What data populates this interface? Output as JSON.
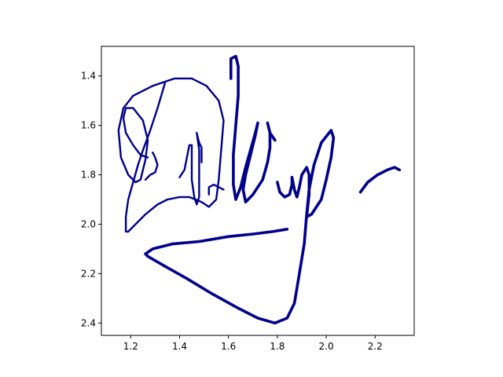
{
  "chart_data": {
    "type": "line",
    "title": "",
    "xlabel": "",
    "ylabel": "",
    "xlim": [
      1.08,
      2.36
    ],
    "ylim": [
      2.45,
      1.28
    ],
    "y_inverted": true,
    "grid": false,
    "line_color": "#00008b",
    "x_ticks": [
      {
        "value": 1.2,
        "label": "1.2"
      },
      {
        "value": 1.4,
        "label": "1.4"
      },
      {
        "value": 1.6,
        "label": "1.6"
      },
      {
        "value": 1.8,
        "label": "1.8"
      },
      {
        "value": 2.0,
        "label": "2.0"
      },
      {
        "value": 2.2,
        "label": "2.2"
      }
    ],
    "y_ticks": [
      {
        "value": 1.4,
        "label": "1.4"
      },
      {
        "value": 1.6,
        "label": "1.6"
      },
      {
        "value": 1.8,
        "label": "1.8"
      },
      {
        "value": 2.0,
        "label": "2.0"
      },
      {
        "value": 2.2,
        "label": "2.2"
      },
      {
        "value": 2.4,
        "label": "2.4"
      }
    ],
    "series": [
      {
        "width": 2,
        "points": [
          [
            1.34,
            1.43
          ],
          [
            1.31,
            1.53
          ],
          [
            1.28,
            1.62
          ],
          [
            1.25,
            1.7
          ],
          [
            1.23,
            1.76
          ],
          [
            1.21,
            1.83
          ],
          [
            1.19,
            1.9
          ],
          [
            1.18,
            1.97
          ],
          [
            1.18,
            2.03
          ],
          [
            1.19,
            2.03
          ],
          [
            1.22,
            2.0
          ],
          [
            1.26,
            1.96
          ],
          [
            1.31,
            1.92
          ],
          [
            1.35,
            1.9
          ],
          [
            1.4,
            1.89
          ],
          [
            1.44,
            1.89
          ],
          [
            1.49,
            1.91
          ],
          [
            1.52,
            1.93
          ],
          [
            1.55,
            1.9
          ],
          [
            1.56,
            1.82
          ],
          [
            1.57,
            1.7
          ],
          [
            1.58,
            1.58
          ],
          [
            1.56,
            1.5
          ],
          [
            1.51,
            1.44
          ],
          [
            1.45,
            1.41
          ],
          [
            1.38,
            1.41
          ],
          [
            1.29,
            1.44
          ],
          [
            1.21,
            1.48
          ],
          [
            1.17,
            1.53
          ],
          [
            1.15,
            1.62
          ],
          [
            1.16,
            1.73
          ],
          [
            1.19,
            1.8
          ],
          [
            1.22,
            1.83
          ],
          [
            1.24,
            1.82
          ],
          [
            1.26,
            1.74
          ],
          [
            1.27,
            1.66
          ],
          [
            1.25,
            1.58
          ],
          [
            1.21,
            1.53
          ],
          [
            1.18,
            1.53
          ],
          [
            1.17,
            1.57
          ],
          [
            1.18,
            1.63
          ],
          [
            1.21,
            1.68
          ],
          [
            1.24,
            1.72
          ],
          [
            1.27,
            1.73
          ]
        ]
      },
      {
        "width": 2,
        "points": [
          [
            1.26,
            1.82
          ],
          [
            1.28,
            1.8
          ],
          [
            1.3,
            1.79
          ],
          [
            1.31,
            1.76
          ],
          [
            1.3,
            1.73
          ],
          [
            1.29,
            1.71
          ]
        ]
      },
      {
        "width": 2,
        "points": [
          [
            1.4,
            1.81
          ],
          [
            1.42,
            1.78
          ],
          [
            1.43,
            1.73
          ],
          [
            1.44,
            1.68
          ],
          [
            1.45,
            1.68
          ],
          [
            1.45,
            1.75
          ],
          [
            1.45,
            1.82
          ],
          [
            1.46,
            1.89
          ],
          [
            1.47,
            1.92
          ],
          [
            1.48,
            1.89
          ],
          [
            1.48,
            1.8
          ],
          [
            1.48,
            1.7
          ],
          [
            1.47,
            1.63
          ],
          [
            1.48,
            1.67
          ],
          [
            1.49,
            1.69
          ],
          [
            1.49,
            1.75
          ]
        ]
      },
      {
        "width": 2,
        "points": [
          [
            1.52,
            1.88
          ],
          [
            1.52,
            1.85
          ],
          [
            1.54,
            1.84
          ],
          [
            1.56,
            1.85
          ],
          [
            1.58,
            1.86
          ]
        ]
      },
      {
        "width": 3,
        "points": [
          [
            1.61,
            1.41
          ],
          [
            1.61,
            1.33
          ],
          [
            1.63,
            1.32
          ],
          [
            1.64,
            1.36
          ],
          [
            1.64,
            1.48
          ],
          [
            1.63,
            1.6
          ],
          [
            1.62,
            1.72
          ],
          [
            1.62,
            1.84
          ],
          [
            1.63,
            1.9
          ],
          [
            1.65,
            1.85
          ],
          [
            1.67,
            1.77
          ],
          [
            1.69,
            1.7
          ],
          [
            1.71,
            1.63
          ],
          [
            1.72,
            1.59
          ],
          [
            1.71,
            1.64
          ],
          [
            1.69,
            1.72
          ],
          [
            1.67,
            1.8
          ],
          [
            1.66,
            1.86
          ],
          [
            1.67,
            1.91
          ],
          [
            1.7,
            1.88
          ],
          [
            1.74,
            1.82
          ],
          [
            1.76,
            1.75
          ],
          [
            1.77,
            1.69
          ],
          [
            1.77,
            1.63
          ],
          [
            1.76,
            1.59
          ],
          [
            1.77,
            1.63
          ],
          [
            1.79,
            1.66
          ]
        ]
      },
      {
        "width": 3,
        "points": [
          [
            1.8,
            1.83
          ],
          [
            1.81,
            1.87
          ],
          [
            1.83,
            1.89
          ],
          [
            1.85,
            1.88
          ],
          [
            1.86,
            1.84
          ],
          [
            1.86,
            1.81
          ],
          [
            1.87,
            1.86
          ],
          [
            1.88,
            1.89
          ],
          [
            1.89,
            1.85
          ],
          [
            1.9,
            1.8
          ],
          [
            1.92,
            1.77
          ],
          [
            1.93,
            1.8
          ],
          [
            1.93,
            1.88
          ],
          [
            1.92,
            1.97
          ],
          [
            1.94,
            1.96
          ],
          [
            1.98,
            1.9
          ],
          [
            2.0,
            1.82
          ],
          [
            2.02,
            1.73
          ],
          [
            2.03,
            1.65
          ],
          [
            2.02,
            1.62
          ],
          [
            1.98,
            1.67
          ],
          [
            1.95,
            1.76
          ],
          [
            1.93,
            1.86
          ],
          [
            1.92,
            1.96
          ],
          [
            1.91,
            2.08
          ],
          [
            1.89,
            2.2
          ],
          [
            1.87,
            2.32
          ],
          [
            1.84,
            2.38
          ],
          [
            1.79,
            2.4
          ],
          [
            1.72,
            2.38
          ],
          [
            1.64,
            2.34
          ],
          [
            1.53,
            2.28
          ],
          [
            1.43,
            2.22
          ],
          [
            1.34,
            2.17
          ],
          [
            1.27,
            2.13
          ],
          [
            1.26,
            2.12
          ],
          [
            1.29,
            2.1
          ],
          [
            1.37,
            2.08
          ],
          [
            1.48,
            2.07
          ],
          [
            1.6,
            2.05
          ],
          [
            1.7,
            2.04
          ],
          [
            1.78,
            2.03
          ],
          [
            1.84,
            2.02
          ]
        ]
      },
      {
        "width": 3,
        "points": [
          [
            2.14,
            1.87
          ],
          [
            2.17,
            1.83
          ],
          [
            2.21,
            1.8
          ],
          [
            2.25,
            1.78
          ],
          [
            2.28,
            1.77
          ],
          [
            2.3,
            1.78
          ]
        ]
      }
    ]
  }
}
